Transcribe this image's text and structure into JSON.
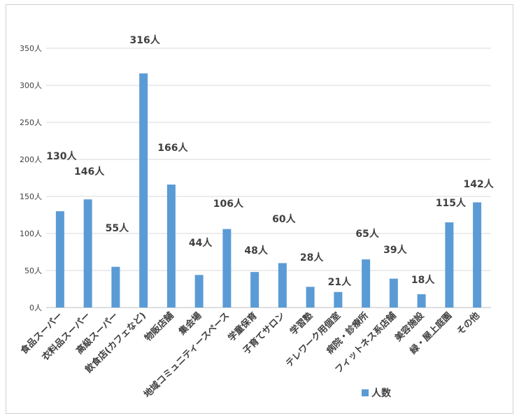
{
  "chart_data": {
    "type": "bar",
    "unit": "人",
    "categories": [
      "食品スーパー",
      "衣料品スーパー",
      "高級スーパー",
      "飲食店(カフェなど)",
      "物販店舗",
      "集会場",
      "地域コミュニティースペース",
      "学童保育",
      "子育てサロン",
      "学習塾",
      "テレワーク用個室",
      "病院・診療所",
      "フィットネス系店舗",
      "美容施設",
      "緑・屋上庭園",
      "その他"
    ],
    "series": [
      {
        "name": "人数",
        "color": "#5b9bd5",
        "values": [
          130,
          146,
          55,
          316,
          166,
          44,
          106,
          48,
          60,
          28,
          21,
          65,
          39,
          18,
          115,
          142
        ]
      }
    ],
    "ylim": [
      0,
      350
    ],
    "yticks": [
      "0人",
      "50人",
      "100人",
      "150人",
      "200人",
      "250人",
      "300人",
      "350人"
    ],
    "data_labels": [
      "130人",
      "146人",
      "55人",
      "316人",
      "166人",
      "44人",
      "106人",
      "48人",
      "60人",
      "28人",
      "21人",
      "65人",
      "39人",
      "18人",
      "115人",
      "142人"
    ],
    "grid": true,
    "legend_position": "bottom-right",
    "title": "",
    "xlabel": "",
    "ylabel": ""
  }
}
